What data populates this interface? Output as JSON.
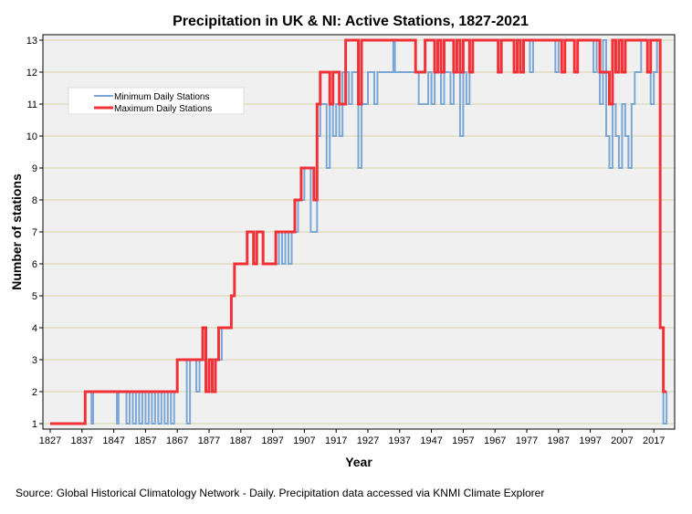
{
  "chart_data": {
    "type": "line",
    "title": "Precipitation in UK & NI: Active Stations, 1827-2021",
    "xlabel": "Year",
    "ylabel": "Number of stations",
    "xlim": [
      1825,
      2024
    ],
    "ylim": [
      0.8,
      13.2
    ],
    "x_ticks": [
      1827,
      1837,
      1847,
      1857,
      1867,
      1877,
      1887,
      1897,
      1907,
      1917,
      1927,
      1937,
      1947,
      1957,
      1967,
      1977,
      1987,
      1997,
      2007,
      2017
    ],
    "y_ticks": [
      1,
      2,
      3,
      4,
      5,
      6,
      7,
      8,
      9,
      10,
      11,
      12,
      13
    ],
    "grid": "horizontal",
    "legend_position": "top-left",
    "series": [
      {
        "name": "Minimum Daily Stations",
        "color": "#7ba7d6",
        "step": true,
        "points": [
          [
            1827,
            1
          ],
          [
            1838,
            2
          ],
          [
            1840,
            1
          ],
          [
            1840.5,
            2
          ],
          [
            1848,
            1
          ],
          [
            1848.5,
            2
          ],
          [
            1851,
            1
          ],
          [
            1852,
            2
          ],
          [
            1853,
            1
          ],
          [
            1854,
            2
          ],
          [
            1855,
            1
          ],
          [
            1856,
            2
          ],
          [
            1857,
            1
          ],
          [
            1858,
            2
          ],
          [
            1859,
            1
          ],
          [
            1860,
            2
          ],
          [
            1861,
            1
          ],
          [
            1862,
            2
          ],
          [
            1863,
            1
          ],
          [
            1864,
            2
          ],
          [
            1865,
            1
          ],
          [
            1866,
            2
          ],
          [
            1867,
            3
          ],
          [
            1870,
            1
          ],
          [
            1871,
            3
          ],
          [
            1873,
            2
          ],
          [
            1874,
            3
          ],
          [
            1876,
            2
          ],
          [
            1878,
            3
          ],
          [
            1881,
            4
          ],
          [
            1884,
            5
          ],
          [
            1885,
            6
          ],
          [
            1889,
            7
          ],
          [
            1891,
            6
          ],
          [
            1892,
            7
          ],
          [
            1894,
            6
          ],
          [
            1899,
            7
          ],
          [
            1900,
            6
          ],
          [
            1901,
            7
          ],
          [
            1902,
            6
          ],
          [
            1903,
            7
          ],
          [
            1905,
            8
          ],
          [
            1907,
            9
          ],
          [
            1909,
            7
          ],
          [
            1911,
            10
          ],
          [
            1912,
            11
          ],
          [
            1914,
            9
          ],
          [
            1915,
            12
          ],
          [
            1916,
            10
          ],
          [
            1917,
            11
          ],
          [
            1918,
            10
          ],
          [
            1919,
            12
          ],
          [
            1921,
            11
          ],
          [
            1922,
            12
          ],
          [
            1924,
            9
          ],
          [
            1925,
            11
          ],
          [
            1927,
            12
          ],
          [
            1929,
            11
          ],
          [
            1930,
            12
          ],
          [
            1935,
            13
          ],
          [
            1935.5,
            12
          ],
          [
            1943,
            11
          ],
          [
            1946,
            12
          ],
          [
            1947,
            11
          ],
          [
            1948,
            12
          ],
          [
            1950,
            11
          ],
          [
            1951,
            12
          ],
          [
            1953,
            11
          ],
          [
            1954,
            12
          ],
          [
            1956,
            10
          ],
          [
            1957,
            12
          ],
          [
            1958,
            11
          ],
          [
            1959,
            13
          ],
          [
            1978,
            12
          ],
          [
            1979,
            13
          ],
          [
            1986,
            12
          ],
          [
            1987,
            13
          ],
          [
            1992,
            12
          ],
          [
            1993,
            13
          ],
          [
            1998,
            12
          ],
          [
            1999,
            13
          ],
          [
            2000,
            11
          ],
          [
            2001,
            13
          ],
          [
            2002,
            10
          ],
          [
            2003,
            9
          ],
          [
            2004,
            11
          ],
          [
            2005,
            10
          ],
          [
            2006,
            9
          ],
          [
            2007,
            11
          ],
          [
            2008,
            10
          ],
          [
            2009,
            9
          ],
          [
            2010,
            11
          ],
          [
            2011,
            12
          ],
          [
            2013,
            13
          ],
          [
            2016,
            11
          ],
          [
            2017,
            12
          ],
          [
            2018,
            13
          ],
          [
            2019,
            4
          ],
          [
            2020,
            1
          ],
          [
            2021,
            2
          ]
        ]
      },
      {
        "name": "Maximum Daily Stations",
        "color": "#f03238",
        "step": true,
        "points": [
          [
            1827,
            1
          ],
          [
            1838,
            2
          ],
          [
            1867,
            3
          ],
          [
            1875,
            4
          ],
          [
            1876,
            2
          ],
          [
            1877,
            3
          ],
          [
            1878,
            2
          ],
          [
            1879,
            3
          ],
          [
            1880,
            4
          ],
          [
            1884,
            5
          ],
          [
            1885,
            6
          ],
          [
            1889,
            7
          ],
          [
            1891,
            6
          ],
          [
            1892,
            7
          ],
          [
            1894,
            6
          ],
          [
            1898,
            7
          ],
          [
            1904,
            8
          ],
          [
            1906,
            9
          ],
          [
            1910,
            8
          ],
          [
            1911,
            11
          ],
          [
            1912,
            12
          ],
          [
            1915,
            11
          ],
          [
            1916,
            12
          ],
          [
            1918,
            11
          ],
          [
            1920,
            13
          ],
          [
            1924,
            11
          ],
          [
            1925,
            13
          ],
          [
            1942,
            12
          ],
          [
            1945,
            13
          ],
          [
            1948,
            12
          ],
          [
            1949,
            13
          ],
          [
            1950,
            12
          ],
          [
            1951,
            13
          ],
          [
            1954,
            12
          ],
          [
            1955,
            13
          ],
          [
            1956,
            12
          ],
          [
            1957,
            13
          ],
          [
            1959,
            12
          ],
          [
            1960,
            13
          ],
          [
            1968,
            12
          ],
          [
            1969,
            13
          ],
          [
            1973,
            12
          ],
          [
            1974,
            13
          ],
          [
            1975,
            12
          ],
          [
            1976,
            13
          ],
          [
            1988,
            12
          ],
          [
            1989,
            13
          ],
          [
            1992,
            12
          ],
          [
            1993,
            13
          ],
          [
            2000,
            12
          ],
          [
            2003,
            11
          ],
          [
            2004,
            13
          ],
          [
            2005,
            12
          ],
          [
            2006,
            13
          ],
          [
            2007,
            12
          ],
          [
            2008,
            13
          ],
          [
            2015,
            12
          ],
          [
            2016,
            13
          ],
          [
            2019,
            4
          ],
          [
            2020,
            2
          ],
          [
            2021,
            2
          ]
        ]
      }
    ]
  },
  "source_note": "Source: Global Historical Climatology Network - Daily. Precipitation data accessed via KNMI Climate Explorer"
}
